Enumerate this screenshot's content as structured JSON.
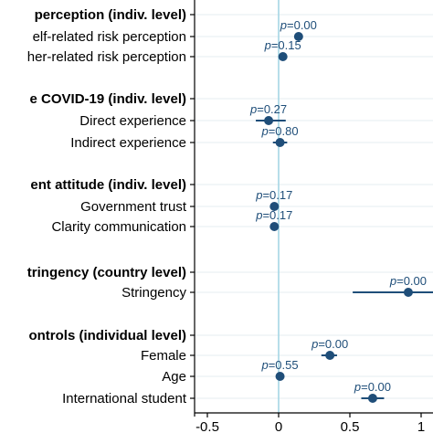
{
  "chart_data": {
    "type": "scatter",
    "subtype": "coefficient-plot-with-confidence-intervals",
    "orientation": "horizontal",
    "xlim": [
      -0.6,
      1.1
    ],
    "x_ticks": [
      -0.5,
      0,
      0.5,
      1
    ],
    "x_tick_labels": [
      "-0.5",
      "0",
      "0.5",
      "1"
    ],
    "reference_line_x": 0,
    "grid": true,
    "colors": {
      "marker": "#1f4e79",
      "reference_line": "#9fd3e3",
      "grid": "#eaf0f3"
    },
    "groups": [
      {
        "label": "perception (indiv. level)",
        "items": [
          {
            "label": "elf-related risk perception",
            "estimate": 0.14,
            "ci": [
              0.12,
              0.16
            ],
            "p_prefix": "p",
            "p_value": "=0.00"
          },
          {
            "label": "her-related risk perception",
            "estimate": 0.03,
            "ci": [
              0.01,
              0.05
            ],
            "p_prefix": "p",
            "p_value": "=0.15"
          }
        ]
      },
      {
        "label": "e COVID-19 (indiv. level)",
        "items": [
          {
            "label": "Direct experience",
            "estimate": -0.07,
            "ci": [
              -0.16,
              0.05
            ],
            "p_prefix": "p",
            "p_value": "=0.27"
          },
          {
            "label": "Indirect experience",
            "estimate": 0.01,
            "ci": [
              -0.04,
              0.06
            ],
            "p_prefix": "p",
            "p_value": "=0.80"
          }
        ]
      },
      {
        "label": "ent attitude (indiv. level)",
        "items": [
          {
            "label": "Government trust",
            "estimate": -0.03,
            "ci": [
              -0.05,
              -0.01
            ],
            "p_prefix": "p",
            "p_value": "=0.17"
          },
          {
            "label": "Clarity communication",
            "estimate": -0.03,
            "ci": [
              -0.05,
              -0.01
            ],
            "p_prefix": "p",
            "p_value": "=0.17"
          }
        ]
      },
      {
        "label": "tringency (country level)",
        "items": [
          {
            "label": "Stringency",
            "estimate": 0.91,
            "ci": [
              0.52,
              1.1
            ],
            "p_prefix": "p",
            "p_value": "=0.00"
          }
        ]
      },
      {
        "label": "ontrols (individual level)",
        "items": [
          {
            "label": "Female",
            "estimate": 0.36,
            "ci": [
              0.3,
              0.41
            ],
            "p_prefix": "p",
            "p_value": "=0.00"
          },
          {
            "label": "Age",
            "estimate": 0.01,
            "ci": [
              -0.01,
              0.03
            ],
            "p_prefix": "p",
            "p_value": "=0.55"
          },
          {
            "label": "International student",
            "estimate": 0.66,
            "ci": [
              0.58,
              0.74
            ],
            "p_prefix": "p",
            "p_value": "=0.00"
          }
        ]
      }
    ]
  }
}
